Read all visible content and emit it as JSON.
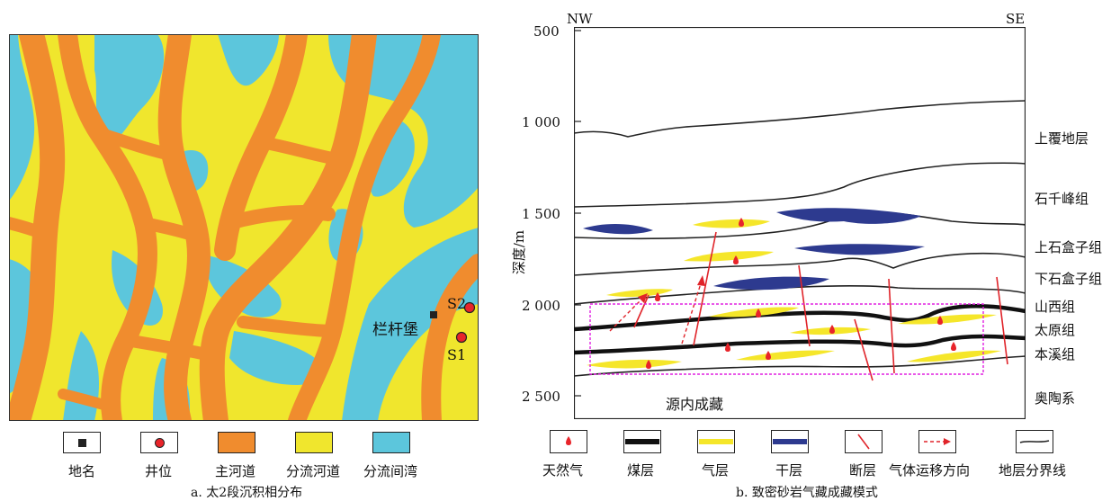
{
  "panel_a": {
    "caption": "a. 太2段沉积相分布",
    "place_label": "栏杆堡",
    "wells": [
      "S1",
      "S2"
    ],
    "legend": [
      {
        "label": "地名",
        "kind": "place"
      },
      {
        "label": "井位",
        "kind": "well"
      },
      {
        "label": "主河道",
        "kind": "fill",
        "color": "#f08c2e"
      },
      {
        "label": "分流河道",
        "kind": "fill",
        "color": "#f0e62d"
      },
      {
        "label": "分流间湾",
        "kind": "fill",
        "color": "#5cc6dc"
      }
    ]
  },
  "panel_b": {
    "caption": "b. 致密砂岩气藏成藏模式",
    "left_end": "NW",
    "right_end": "SE",
    "y_axis_label": "深度/m",
    "depth_ticks": [
      "500",
      "1 000",
      "1 500",
      "2 000",
      "2 500"
    ],
    "strata": [
      "上覆地层",
      "石千峰组",
      "上石盒子组",
      "下石盒子组",
      "山西组",
      "太原组",
      "本溪组",
      "奥陶系"
    ],
    "box_label": "源内成藏",
    "legend": [
      {
        "label": "天然气"
      },
      {
        "label": "煤层"
      },
      {
        "label": "气层"
      },
      {
        "label": "干层"
      },
      {
        "label": "断层"
      },
      {
        "label": "气体运移方向"
      },
      {
        "label": "地层分界线"
      }
    ],
    "colors": {
      "gas_layer": "#f5e62a",
      "dry_layer": "#2d3a8f",
      "fault": "#e0242a",
      "box": "#e020e0",
      "gas_drop": "#e8242a"
    }
  }
}
